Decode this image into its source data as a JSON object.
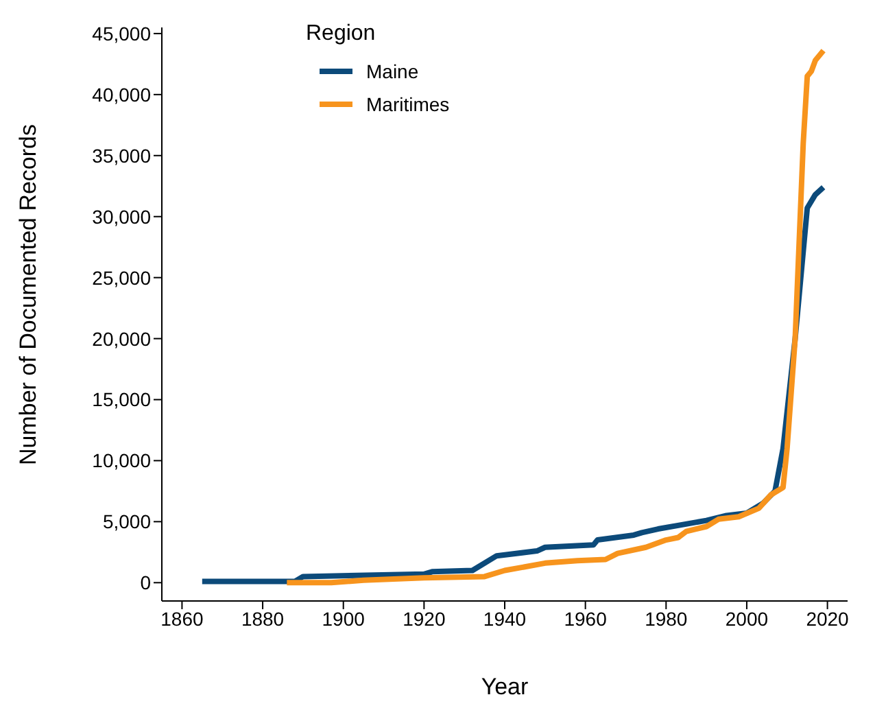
{
  "chart_data": {
    "type": "line",
    "xlabel": "Year",
    "ylabel": "Number of Documented Records",
    "legend_title": "Region",
    "legend": "top left",
    "grid": false,
    "marker": "none",
    "line_style": "solid",
    "xlim": [
      1855,
      2025
    ],
    "xticks": [
      1860,
      1880,
      1900,
      1920,
      1940,
      1960,
      1980,
      2000,
      2020
    ],
    "ylim": [
      -1500,
      45500
    ],
    "yticks": [
      0,
      {
        "value": 5000,
        "label": "5,000"
      },
      {
        "value": 10000,
        "label": "10,000"
      },
      {
        "value": 15000,
        "label": "15,000"
      },
      {
        "value": 20000,
        "label": "20,000"
      },
      {
        "value": 25000,
        "label": "25,000"
      },
      {
        "value": 30000,
        "label": "30,000"
      },
      {
        "value": 35000,
        "label": "35,000"
      },
      {
        "value": 40000,
        "label": "40,000"
      },
      {
        "value": 45000,
        "label": "45,000"
      }
    ],
    "series": [
      {
        "name": "Maine",
        "color": "#0c4a7a",
        "x": [
          1865,
          1888,
          1890,
          1920,
          1922,
          1932,
          1938,
          1948,
          1950,
          1962,
          1963,
          1972,
          1974,
          1978,
          1990,
          1995,
          2000,
          2004,
          2007,
          2009,
          2012,
          2015,
          2017,
          2019
        ],
        "values": [
          100,
          100,
          500,
          700,
          900,
          1000,
          2200,
          2600,
          2900,
          3100,
          3500,
          3900,
          4100,
          4400,
          5100,
          5500,
          5700,
          6500,
          7500,
          11000,
          20000,
          30700,
          31800,
          32400
        ]
      },
      {
        "name": "Maritimes",
        "color": "#f7941d",
        "x": [
          1886,
          1897,
          1905,
          1920,
          1935,
          1940,
          1945,
          1950,
          1958,
          1965,
          1968,
          1975,
          1980,
          1983,
          1985,
          1990,
          1993,
          1998,
          2003,
          2006,
          2009,
          2010,
          2012,
          2014,
          2015,
          2016,
          2017,
          2019
        ],
        "values": [
          0,
          0,
          200,
          400,
          500,
          1000,
          1300,
          1600,
          1800,
          1900,
          2400,
          2900,
          3500,
          3700,
          4200,
          4600,
          5200,
          5400,
          6100,
          7200,
          7800,
          11000,
          20000,
          36000,
          41500,
          41900,
          42800,
          43600
        ]
      }
    ]
  }
}
